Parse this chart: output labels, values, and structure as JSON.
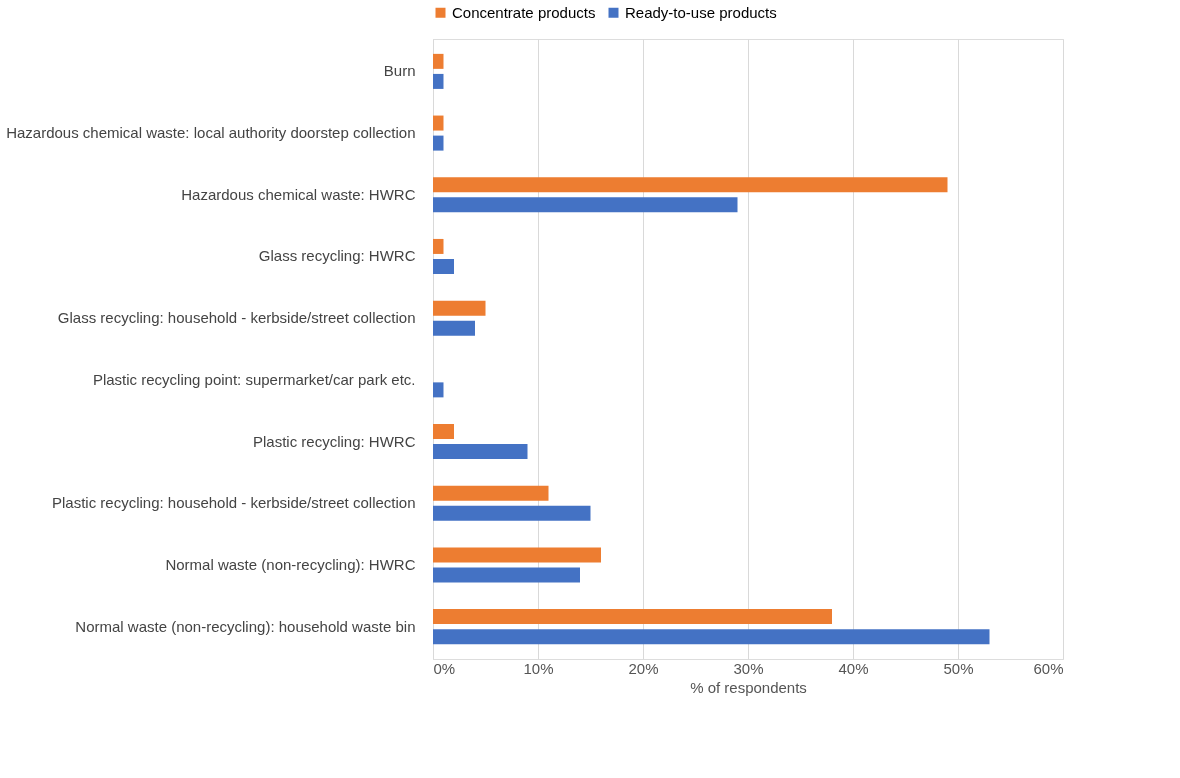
{
  "chart_data": {
    "type": "bar",
    "orientation": "horizontal",
    "xlabel": "% of respondents",
    "categories": [
      "Burn",
      "Hazardous chemical waste: local authority doorstep collection",
      "Hazardous chemical waste: HWRC",
      "Glass recycling: HWRC",
      "Glass recycling: household - kerbside/street collection",
      "Plastic recycling point: supermarket/car park etc.",
      "Plastic recycling: HWRC",
      "Plastic recycling: household - kerbside/street collection",
      "Normal waste (non-recycling): HWRC",
      "Normal waste (non-recycling): household waste bin"
    ],
    "series": [
      {
        "name": "Concentrate products",
        "color": "#ed7d31",
        "values": [
          1,
          1,
          49,
          1,
          5,
          0,
          2,
          11,
          16,
          38
        ]
      },
      {
        "name": "Ready-to-use products",
        "color": "#4472c4",
        "values": [
          1,
          1,
          29,
          2,
          4,
          1,
          9,
          15,
          14,
          53
        ]
      }
    ],
    "xlim": [
      0,
      60
    ],
    "xticks": [
      {
        "value": 0,
        "label": "0%"
      },
      {
        "value": 10,
        "label": "10%"
      },
      {
        "value": 20,
        "label": "20%"
      },
      {
        "value": 30,
        "label": "30%"
      },
      {
        "value": 40,
        "label": "40%"
      },
      {
        "value": 50,
        "label": "50%"
      },
      {
        "value": 60,
        "label": "60%"
      }
    ],
    "grid": "x",
    "legend": "top"
  }
}
